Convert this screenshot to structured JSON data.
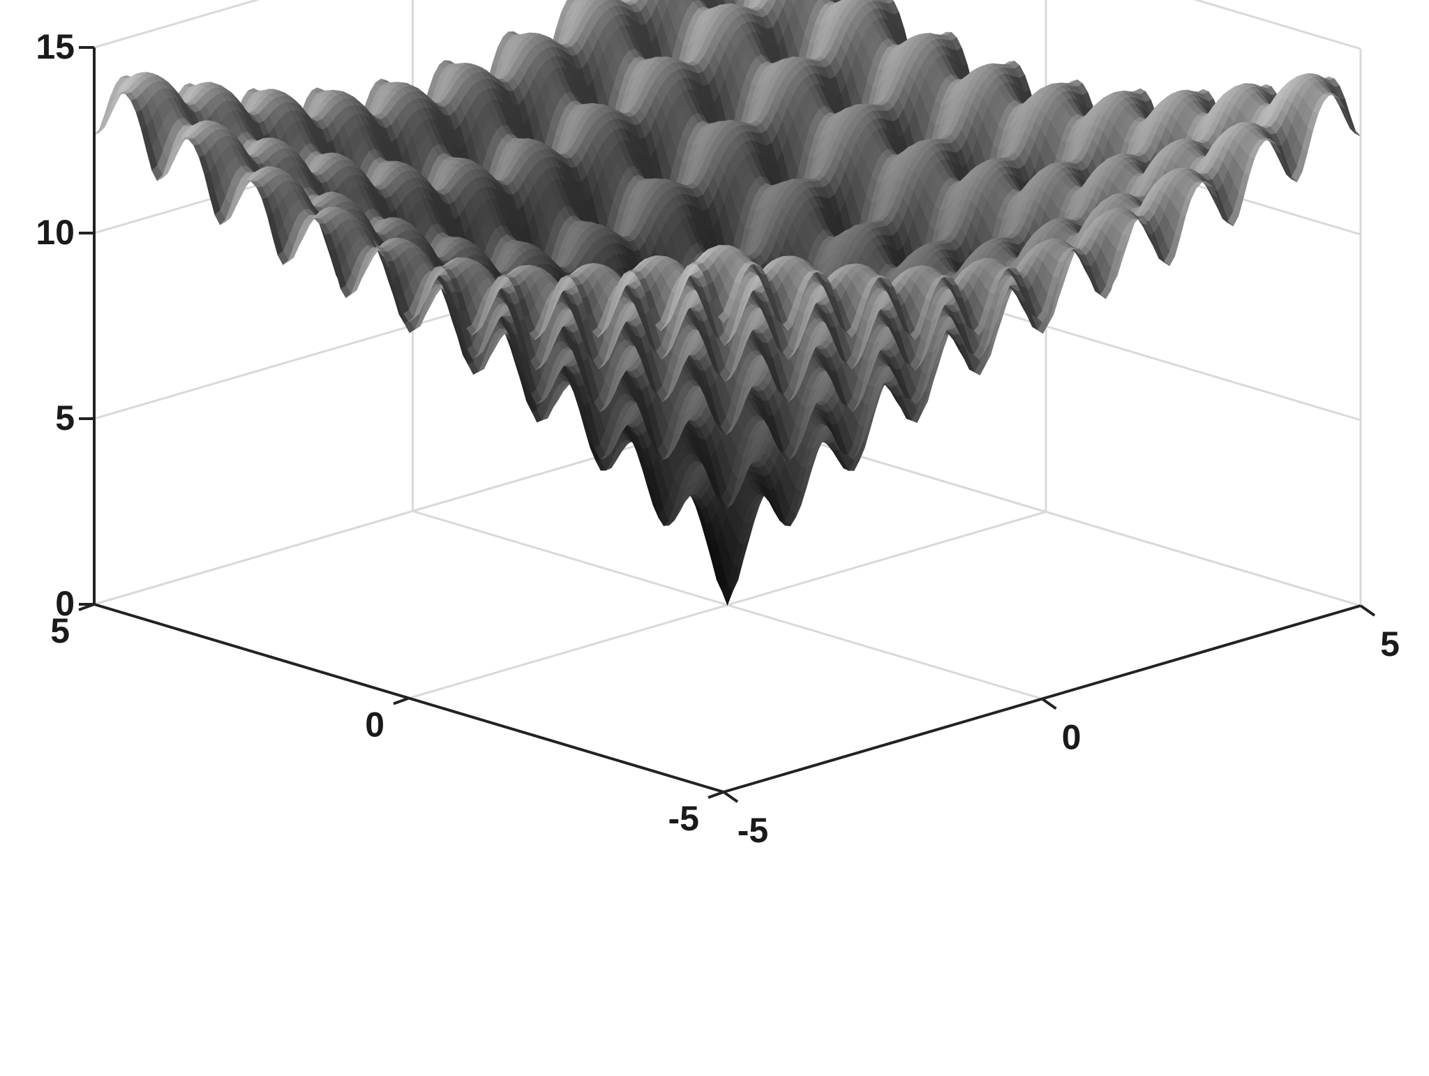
{
  "chart_data": {
    "type": "surface",
    "function": "ackley",
    "colormap": "gray",
    "grid": true,
    "box": true,
    "x_range": [
      -5,
      5
    ],
    "y_range": [
      -5,
      5
    ],
    "z_range": [
      0,
      15
    ],
    "x_ticks": [
      {
        "value": -5,
        "label": "-5"
      },
      {
        "value": 0,
        "label": "0"
      },
      {
        "value": 5,
        "label": "5"
      }
    ],
    "y_ticks": [
      {
        "value": -5,
        "label": "-5"
      },
      {
        "value": 0,
        "label": "0"
      },
      {
        "value": 5,
        "label": "5"
      }
    ],
    "z_ticks": [
      {
        "value": 0,
        "label": "0"
      },
      {
        "value": 5,
        "label": "5"
      },
      {
        "value": 10,
        "label": "10"
      },
      {
        "value": 15,
        "label": "15"
      }
    ],
    "minimum": {
      "x": 0,
      "y": 0,
      "z": 0
    },
    "z_max": 14.3
  }
}
